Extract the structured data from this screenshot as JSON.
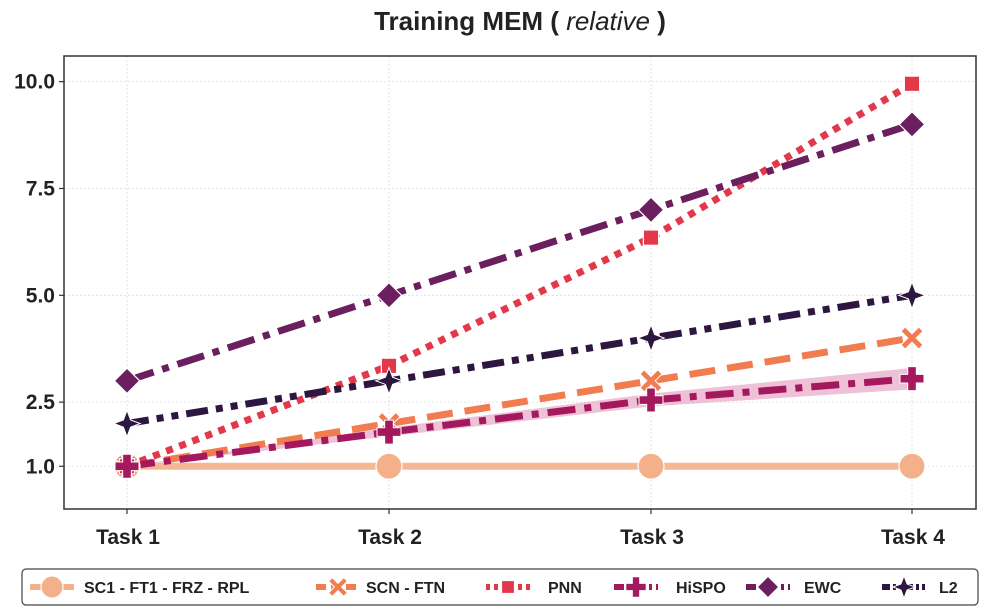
{
  "chart_data": {
    "type": "line",
    "title": "Training MEM (",
    "title_italic": "relative",
    "title_suffix": ")",
    "categories": [
      "Task 1",
      "Task 2",
      "Task 3",
      "Task 4"
    ],
    "y_ticks": [
      1.0,
      2.5,
      5.0,
      7.5,
      10.0
    ],
    "y_tick_labels": [
      "1.0",
      "2.5",
      "5.0",
      "7.5",
      "10.0"
    ],
    "ylim": [
      0.0,
      10.6
    ],
    "grid": true,
    "legend_position": "bottom",
    "series": [
      {
        "name": "SC1 - FT1 - FRZ - RPL",
        "values": [
          1.0,
          1.0,
          1.0,
          1.0
        ],
        "color": "#f4b088",
        "dash": "solid",
        "marker": "circle"
      },
      {
        "name": "SCN - FTN",
        "values": [
          1.0,
          2.0,
          3.0,
          4.0
        ],
        "color": "#f07c50",
        "dash": "dashed",
        "marker": "x"
      },
      {
        "name": "PNN",
        "values": [
          1.0,
          3.35,
          6.35,
          9.95
        ],
        "color": "#e3374a",
        "dash": "dotted",
        "marker": "square"
      },
      {
        "name": "HiSPO",
        "values": [
          1.0,
          1.8,
          2.55,
          3.05
        ],
        "color": "#a4185e",
        "dash": "dashdot",
        "marker": "plus",
        "band": [
          0.0,
          0.1,
          0.15,
          0.25
        ],
        "band_color": "#e8a7c6"
      },
      {
        "name": "EWC",
        "values": [
          3.0,
          5.0,
          7.0,
          9.0
        ],
        "color": "#6b1f5e",
        "dash": "dashdot",
        "marker": "diamond"
      },
      {
        "name": "L2",
        "values": [
          2.0,
          3.0,
          4.0,
          5.0
        ],
        "color": "#2d163f",
        "dash": "dashdotdot",
        "marker": "star4"
      }
    ]
  }
}
